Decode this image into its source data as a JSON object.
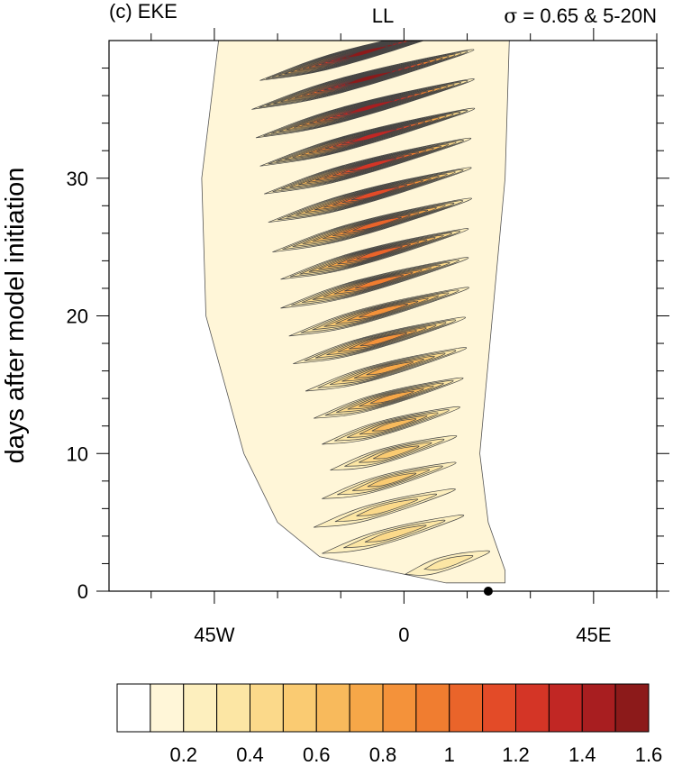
{
  "panel": {
    "left_title": "(c) EKE",
    "center_title": "LL",
    "right_title_symbol": "σ",
    "right_title_text": " = 0.65 & 5-20N"
  },
  "chart_data": {
    "type": "heatmap",
    "subtype": "filled-contour hovmoller",
    "ylabel": "days after model initiation",
    "xlabel": "",
    "xlim": [
      -70,
      60
    ],
    "ylim": [
      0,
      40
    ],
    "x_ticks": [
      {
        "value": -45,
        "label": "45W"
      },
      {
        "value": 0,
        "label": "0"
      },
      {
        "value": 45,
        "label": "45E"
      }
    ],
    "y_ticks": [
      {
        "value": 0,
        "label": "0"
      },
      {
        "value": 10,
        "label": "10"
      },
      {
        "value": 20,
        "label": "20"
      },
      {
        "value": 30,
        "label": "30"
      }
    ],
    "marker": {
      "x": 20,
      "y": 0
    },
    "colorbar": {
      "levels": [
        0.1,
        0.2,
        0.3,
        0.4,
        0.5,
        0.6,
        0.7,
        0.8,
        0.9,
        1.0,
        1.1,
        1.2,
        1.3,
        1.4,
        1.5,
        1.6
      ],
      "tick_labels": [
        "0.2",
        "0.4",
        "0.6",
        "0.8",
        "1",
        "1.2",
        "1.4",
        "1.6"
      ],
      "colors": [
        "#ffffff",
        "#fff6d8",
        "#fdefbe",
        "#fce6a4",
        "#fbd98a",
        "#facb72",
        "#f8ba5c",
        "#f6a748",
        "#f4923a",
        "#f07d30",
        "#ea642a",
        "#e34b28",
        "#d43526",
        "#c12724",
        "#a81e20",
        "#8c1a1a"
      ]
    },
    "envelope": {
      "west_edge": [
        [
          -44,
          40
        ],
        [
          -48,
          30
        ],
        [
          -47,
          20
        ],
        [
          -38,
          10
        ],
        [
          -30,
          5
        ],
        [
          -20,
          2.5
        ],
        [
          10,
          0.6
        ],
        [
          24,
          0.6
        ]
      ],
      "east_edge": [
        [
          25,
          40
        ],
        [
          24,
          30
        ],
        [
          21,
          20
        ],
        [
          18,
          10
        ],
        [
          20,
          5
        ],
        [
          24,
          1.5
        ],
        [
          24,
          0.6
        ]
      ]
    },
    "bands": [
      {
        "day": 2.5,
        "x_start": 0,
        "x_end": 22,
        "peak": 0.35
      },
      {
        "day": 4.6,
        "x_start": -20,
        "x_end": 17,
        "peak": 0.4
      },
      {
        "day": 6.5,
        "x_start": -22,
        "x_end": 15,
        "peak": 0.45
      },
      {
        "day": 8.5,
        "x_start": -20,
        "x_end": 15,
        "peak": 0.5
      },
      {
        "day": 10.5,
        "x_start": -18,
        "x_end": 15,
        "peak": 0.55
      },
      {
        "day": 12.5,
        "x_start": -20,
        "x_end": 16,
        "peak": 0.65
      },
      {
        "day": 14.5,
        "x_start": -22,
        "x_end": 17,
        "peak": 0.7
      },
      {
        "day": 16.6,
        "x_start": -24,
        "x_end": 18,
        "peak": 0.75
      },
      {
        "day": 18.7,
        "x_start": -27,
        "x_end": 18,
        "peak": 0.8
      },
      {
        "day": 20.8,
        "x_start": -28,
        "x_end": 19,
        "peak": 0.85
      },
      {
        "day": 22.9,
        "x_start": -30,
        "x_end": 19,
        "peak": 0.9
      },
      {
        "day": 25.0,
        "x_start": -30,
        "x_end": 19,
        "peak": 1.0
      },
      {
        "day": 27.1,
        "x_start": -32,
        "x_end": 20,
        "peak": 1.05
      },
      {
        "day": 29.3,
        "x_start": -33,
        "x_end": 20,
        "peak": 1.15
      },
      {
        "day": 31.4,
        "x_start": -34,
        "x_end": 20,
        "peak": 1.25
      },
      {
        "day": 33.5,
        "x_start": -35,
        "x_end": 21,
        "peak": 1.3
      },
      {
        "day": 35.6,
        "x_start": -36,
        "x_end": 21,
        "peak": 1.4
      },
      {
        "day": 37.7,
        "x_start": -37,
        "x_end": 21,
        "peak": 1.5
      },
      {
        "day": 39.6,
        "x_start": -35,
        "x_end": 18,
        "peak": 1.6
      }
    ]
  }
}
